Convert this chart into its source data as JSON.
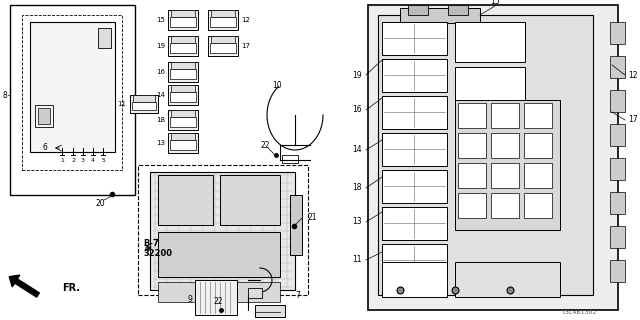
{
  "bg_color": "#ffffff",
  "part_number": "T3L4B1302",
  "fig_w": 6.4,
  "fig_h": 3.2,
  "dpi": 100
}
